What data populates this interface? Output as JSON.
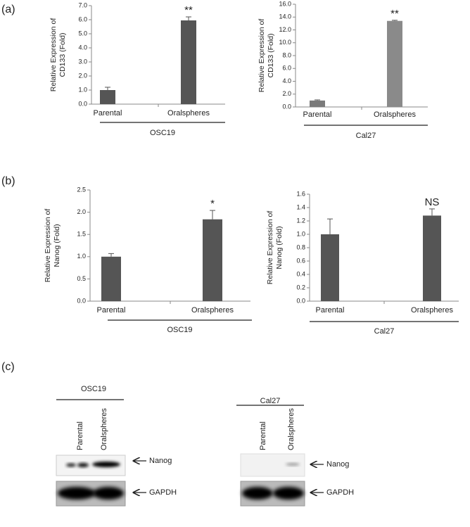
{
  "panels": [
    "(a)",
    "(b)",
    "(c)"
  ],
  "chart_data": [
    {
      "type": "bar",
      "ylabel": [
        "Relative Expression of",
        "CD133 (Fold)"
      ],
      "group": "OSC19",
      "categories": [
        "Parental",
        "Oralspheres"
      ],
      "values": [
        1.0,
        5.95
      ],
      "errors": [
        0.2,
        0.25
      ],
      "annotations": [
        null,
        "**"
      ],
      "colors": [
        "#555555",
        "#555555"
      ],
      "ylim": [
        0,
        7
      ],
      "yticks": [
        {
          "value": 0,
          "label": "0.0"
        },
        {
          "value": 1,
          "label": "1.0"
        },
        {
          "value": 2,
          "label": "2.0"
        },
        {
          "value": 3,
          "label": "3.0"
        },
        {
          "value": 4,
          "label": "4.0"
        },
        {
          "value": 5,
          "label": "5.0"
        },
        {
          "value": 6,
          "label": "6.0"
        },
        {
          "value": 7,
          "label": "7.0"
        }
      ]
    },
    {
      "type": "bar",
      "ylabel": [
        "Relative Expression of",
        "CD133 (Fold)"
      ],
      "group": "Cal27",
      "categories": [
        "Parental",
        "Oralspheres"
      ],
      "values": [
        1.0,
        13.4
      ],
      "errors": [
        0.1,
        0.1
      ],
      "annotations": [
        null,
        "**"
      ],
      "colors": [
        "#7a7a7a",
        "#8a8a8a"
      ],
      "ylim": [
        0,
        16
      ],
      "yticks": [
        {
          "value": 0,
          "label": "0.0"
        },
        {
          "value": 2,
          "label": "2.0"
        },
        {
          "value": 4,
          "label": "4.0"
        },
        {
          "value": 6,
          "label": "6.0"
        },
        {
          "value": 8,
          "label": "8.0"
        },
        {
          "value": 10,
          "label": "10.0"
        },
        {
          "value": 12,
          "label": "12.0"
        },
        {
          "value": 14,
          "label": "14.0"
        },
        {
          "value": 16,
          "label": "16.0"
        }
      ]
    },
    {
      "type": "bar",
      "ylabel": [
        "Relative Expression of",
        "Nanog (Fold)"
      ],
      "group": "OSC19",
      "categories": [
        "Parental",
        "Oralspheres"
      ],
      "values": [
        1.0,
        1.84
      ],
      "errors": [
        0.07,
        0.2
      ],
      "annotations": [
        null,
        "*"
      ],
      "colors": [
        "#555555",
        "#555555"
      ],
      "ylim": [
        0,
        2.5
      ],
      "yticks": [
        {
          "value": 0,
          "label": "0.0"
        },
        {
          "value": 0.5,
          "label": "0.5"
        },
        {
          "value": 1,
          "label": "1.0"
        },
        {
          "value": 1.5,
          "label": "1.5"
        },
        {
          "value": 2,
          "label": "2.0"
        },
        {
          "value": 2.5,
          "label": "2.5"
        }
      ]
    },
    {
      "type": "bar",
      "ylabel": [
        "Relative Expression of",
        "Nanog (Fold)"
      ],
      "group": "Cal27",
      "categories": [
        "Parental",
        "Oralspheres"
      ],
      "values": [
        1.0,
        1.28
      ],
      "errors": [
        0.23,
        0.1
      ],
      "annotations": [
        null,
        "NS"
      ],
      "colors": [
        "#555555",
        "#555555"
      ],
      "ylim": [
        0,
        1.6
      ],
      "yticks": [
        {
          "value": 0,
          "label": "0.0"
        },
        {
          "value": 0.2,
          "label": "0.2"
        },
        {
          "value": 0.4,
          "label": "0.4"
        },
        {
          "value": 0.6,
          "label": "0.6"
        },
        {
          "value": 0.8,
          "label": "0.8"
        },
        {
          "value": 1,
          "label": "1.0"
        },
        {
          "value": 1.2,
          "label": "1.2"
        },
        {
          "value": 1.4,
          "label": "1.4"
        },
        {
          "value": 1.6,
          "label": "1.6"
        }
      ]
    }
  ],
  "blots": {
    "groups": [
      {
        "name": "OSC19",
        "lanes": [
          "Parental",
          "Oralspheres"
        ]
      },
      {
        "name": "Cal27",
        "lanes": [
          "Parental",
          "Oralspheres"
        ]
      }
    ],
    "proteins": [
      "Nanog",
      "GAPDH"
    ]
  }
}
